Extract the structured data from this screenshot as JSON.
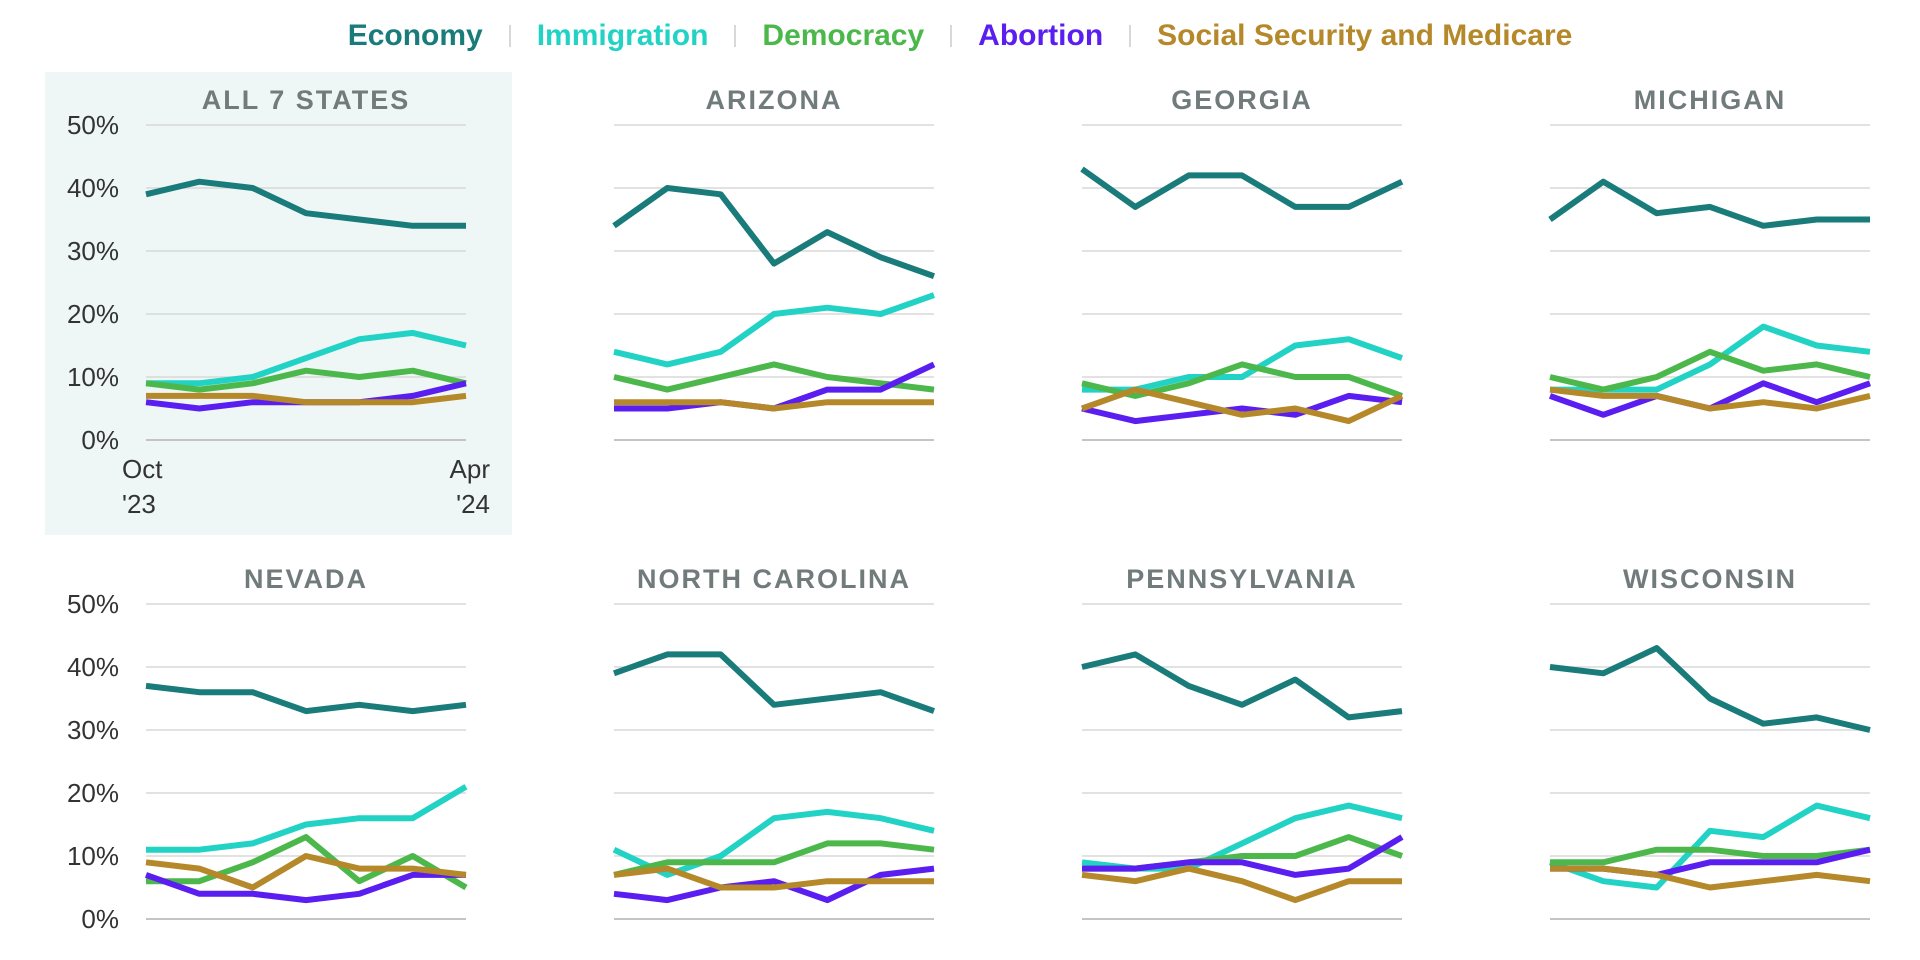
{
  "legend": [
    {
      "label": "Economy",
      "color": "#1a7b7b"
    },
    {
      "label": "Immigration",
      "color": "#22d3c5"
    },
    {
      "label": "Democracy",
      "color": "#4cb84c"
    },
    {
      "label": "Abortion",
      "color": "#5a1ef0"
    },
    {
      "label": "Social Security and Medicare",
      "color": "#b5882a"
    }
  ],
  "chart_data": {
    "type": "line",
    "y_tick_labels": [
      "0%",
      "10%",
      "20%",
      "30%",
      "40%",
      "50%"
    ],
    "ylim": [
      0,
      50
    ],
    "x_tick_labels": [
      {
        "line1": "Oct",
        "line2": "'23"
      },
      {
        "line1": "Apr",
        "line2": "'24"
      }
    ],
    "x_points": 7,
    "highlighted_panel": "ALL 7 STATES",
    "panels": [
      {
        "title": "ALL 7 STATES",
        "series": {
          "Economy": [
            39,
            41,
            40,
            36,
            35,
            34,
            34
          ],
          "Immigration": [
            9,
            9,
            10,
            13,
            16,
            17,
            15
          ],
          "Democracy": [
            9,
            8,
            9,
            11,
            10,
            11,
            9
          ],
          "Abortion": [
            6,
            5,
            6,
            6,
            6,
            7,
            9
          ],
          "Social Security and Medicare": [
            7,
            7,
            7,
            6,
            6,
            6,
            7
          ]
        }
      },
      {
        "title": "ARIZONA",
        "series": {
          "Economy": [
            34,
            40,
            39,
            28,
            33,
            29,
            26
          ],
          "Immigration": [
            14,
            12,
            14,
            20,
            21,
            20,
            23
          ],
          "Democracy": [
            10,
            8,
            10,
            12,
            10,
            9,
            8
          ],
          "Abortion": [
            5,
            5,
            6,
            5,
            8,
            8,
            12
          ],
          "Social Security and Medicare": [
            6,
            6,
            6,
            5,
            6,
            6,
            6
          ]
        }
      },
      {
        "title": "GEORGIA",
        "series": {
          "Economy": [
            43,
            37,
            42,
            42,
            37,
            37,
            41
          ],
          "Immigration": [
            8,
            8,
            10,
            10,
            15,
            16,
            13
          ],
          "Democracy": [
            9,
            7,
            9,
            12,
            10,
            10,
            7
          ],
          "Abortion": [
            5,
            3,
            4,
            5,
            4,
            7,
            6
          ],
          "Social Security and Medicare": [
            5,
            8,
            6,
            4,
            5,
            3,
            7
          ]
        }
      },
      {
        "title": "MICHIGAN",
        "series": {
          "Economy": [
            35,
            41,
            36,
            37,
            34,
            35,
            35
          ],
          "Immigration": [
            8,
            8,
            8,
            12,
            18,
            15,
            14
          ],
          "Democracy": [
            10,
            8,
            10,
            14,
            11,
            12,
            10
          ],
          "Abortion": [
            7,
            4,
            7,
            5,
            9,
            6,
            9
          ],
          "Social Security and Medicare": [
            8,
            7,
            7,
            5,
            6,
            5,
            7
          ]
        }
      },
      {
        "title": "NEVADA",
        "series": {
          "Economy": [
            37,
            36,
            36,
            33,
            34,
            33,
            34
          ],
          "Immigration": [
            11,
            11,
            12,
            15,
            16,
            16,
            21
          ],
          "Democracy": [
            6,
            6,
            9,
            13,
            6,
            10,
            5
          ],
          "Abortion": [
            7,
            4,
            4,
            3,
            4,
            7,
            7
          ],
          "Social Security and Medicare": [
            9,
            8,
            5,
            10,
            8,
            8,
            7
          ]
        }
      },
      {
        "title": "NORTH CAROLINA",
        "series": {
          "Economy": [
            39,
            42,
            42,
            34,
            35,
            36,
            33
          ],
          "Immigration": [
            11,
            7,
            10,
            16,
            17,
            16,
            14
          ],
          "Democracy": [
            7,
            9,
            9,
            9,
            12,
            12,
            11
          ],
          "Abortion": [
            4,
            3,
            5,
            6,
            3,
            7,
            8
          ],
          "Social Security and Medicare": [
            7,
            8,
            5,
            5,
            6,
            6,
            6
          ]
        }
      },
      {
        "title": "PENNSYLVANIA",
        "series": {
          "Economy": [
            40,
            42,
            37,
            34,
            38,
            32,
            33
          ],
          "Immigration": [
            9,
            8,
            8,
            12,
            16,
            18,
            16
          ],
          "Democracy": [
            8,
            8,
            9,
            10,
            10,
            13,
            10
          ],
          "Abortion": [
            8,
            8,
            9,
            9,
            7,
            8,
            13
          ],
          "Social Security and Medicare": [
            7,
            6,
            8,
            6,
            3,
            6,
            6
          ]
        }
      },
      {
        "title": "WISCONSIN",
        "series": {
          "Economy": [
            40,
            39,
            43,
            35,
            31,
            32,
            30
          ],
          "Immigration": [
            9,
            6,
            5,
            14,
            13,
            18,
            16
          ],
          "Democracy": [
            9,
            9,
            11,
            11,
            10,
            10,
            11
          ],
          "Abortion": [
            8,
            8,
            7,
            9,
            9,
            9,
            11
          ],
          "Social Security and Medicare": [
            8,
            8,
            7,
            5,
            6,
            7,
            6
          ]
        }
      }
    ]
  }
}
